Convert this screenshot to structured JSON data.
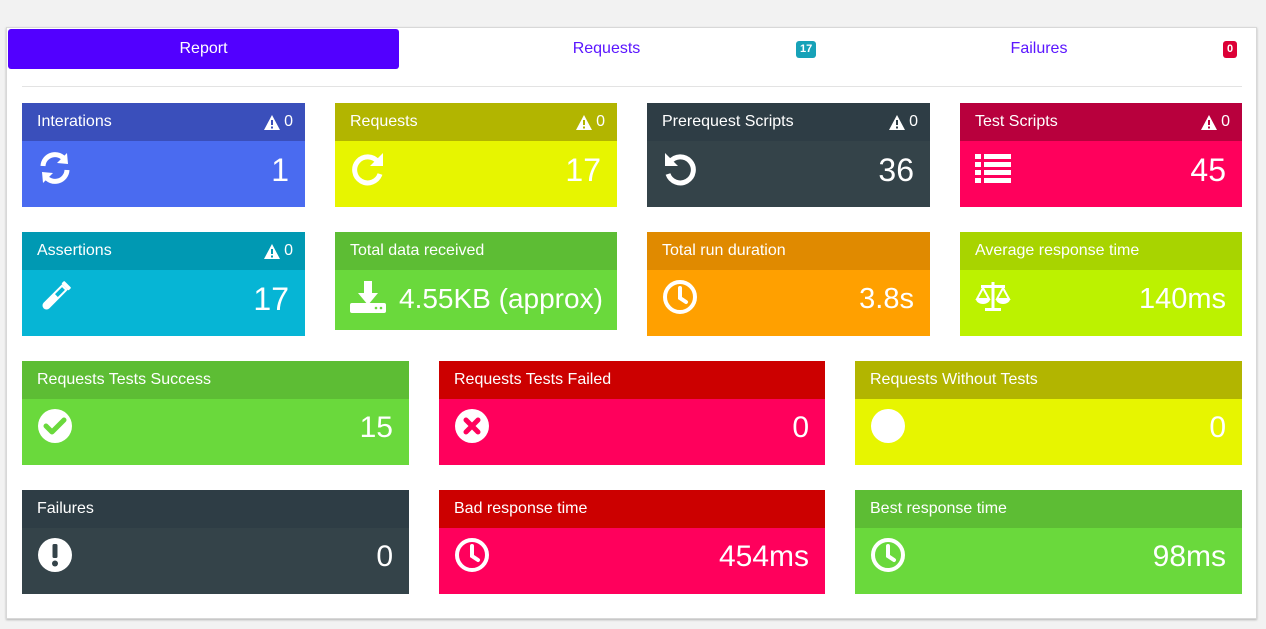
{
  "tabs": [
    {
      "label": "Report",
      "active": true
    },
    {
      "label": "Requests",
      "badge": "17",
      "badge_color": "#17a2b8"
    },
    {
      "label": "Failures",
      "badge": "0",
      "badge_color": "#dc0036"
    }
  ],
  "cards": {
    "iterations": {
      "title": "Interations",
      "warn": "0",
      "value": "1",
      "icon": "sync-icon"
    },
    "requests": {
      "title": "Requests",
      "warn": "0",
      "value": "17",
      "icon": "redo-icon"
    },
    "prerequest": {
      "title": "Prerequest Scripts",
      "warn": "0",
      "value": "36",
      "icon": "undo-icon"
    },
    "testscripts": {
      "title": "Test Scripts",
      "warn": "0",
      "value": "45",
      "icon": "list-icon"
    },
    "assertions": {
      "title": "Assertions",
      "warn": "0",
      "value": "17",
      "icon": "vial-icon"
    },
    "datareceived": {
      "title": "Total data received",
      "value": "4.55KB (approx)",
      "icon": "download-icon"
    },
    "runduration": {
      "title": "Total run duration",
      "value": "3.8s",
      "icon": "clock-icon"
    },
    "avgresponse": {
      "title": "Average response time",
      "value": "140ms",
      "icon": "balance-scale-icon"
    },
    "testsuccess": {
      "title": "Requests Tests Success",
      "value": "15",
      "icon": "check-circle-icon"
    },
    "testfailed": {
      "title": "Requests Tests Failed",
      "value": "0",
      "icon": "times-circle-icon"
    },
    "withouttests": {
      "title": "Requests Without Tests",
      "value": "0",
      "icon": "circle-icon"
    },
    "failures": {
      "title": "Failures",
      "value": "0",
      "icon": "exclamation-circle-icon"
    },
    "badresponse": {
      "title": "Bad response time",
      "value": "454ms",
      "icon": "clock-icon"
    },
    "bestresponse": {
      "title": "Best response time",
      "value": "98ms",
      "icon": "clock-icon"
    }
  },
  "colors": {
    "blue": [
      "#3a4fbb",
      "#4a6bf0"
    ],
    "yellow": [
      "#b2b500",
      "#e7f500"
    ],
    "dark": [
      "#2e3d45",
      "#344349"
    ],
    "pink": [
      "#b8003d",
      "#ff005c"
    ],
    "cyan": [
      "#0099b3",
      "#06b5d5"
    ],
    "green": [
      "#5dbd34",
      "#6ad93c"
    ],
    "orange": [
      "#e08a00",
      "#ffa000"
    ],
    "lime": [
      "#a8d400",
      "#bcf200"
    ],
    "red": [
      "#cc0000",
      "#ff005c"
    ]
  }
}
